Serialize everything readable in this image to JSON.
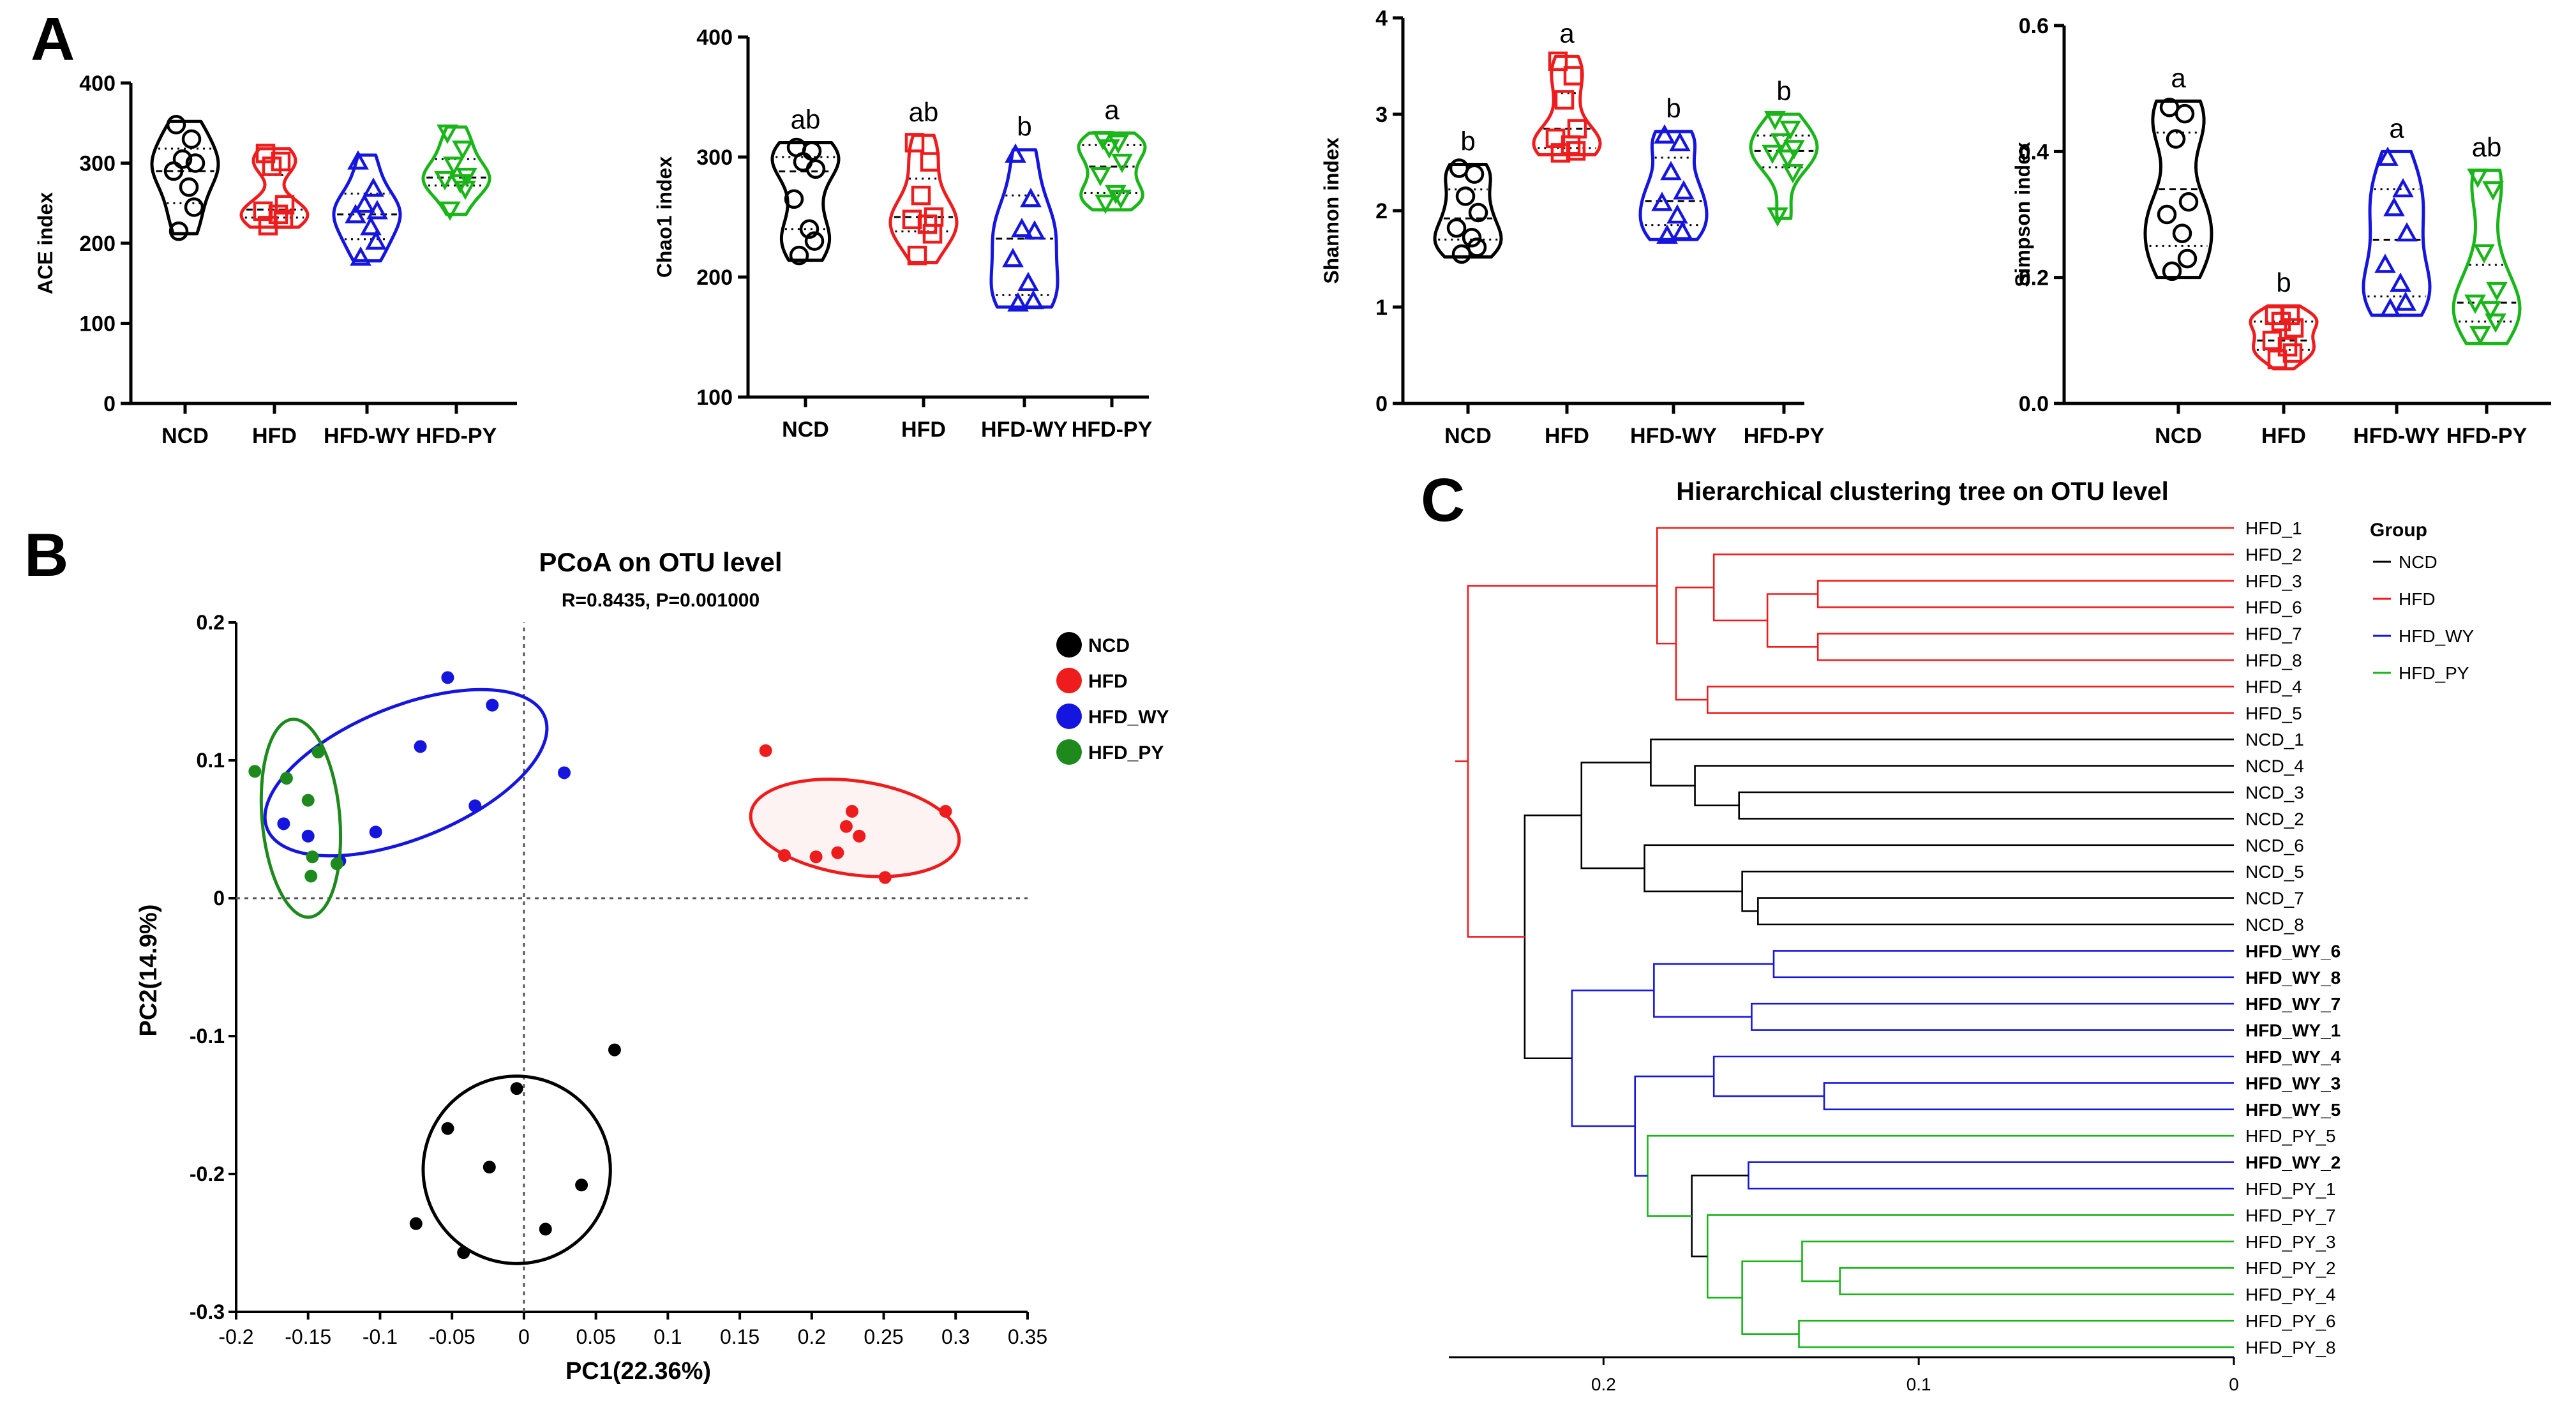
{
  "panel_labels": {
    "a": "A",
    "b": "B",
    "c": "C"
  },
  "colors": {
    "NCD": "#000000",
    "HFD": "#ee1c1c",
    "HFD-WY": "#1515e0",
    "HFD-PY": "#19b519",
    "HFD_PY_scatter": "#1e8a1e"
  },
  "chart_data": [
    {
      "id": "ace",
      "type": "violin",
      "ylabel": "ACE index",
      "ylim": [
        0,
        400
      ],
      "yticks": [
        0,
        100,
        200,
        300,
        400
      ],
      "categories": [
        "NCD",
        "HFD",
        "HFD-WY",
        "HFD-PY"
      ],
      "markers": [
        "circle",
        "square",
        "triangle-up",
        "triangle-down"
      ],
      "letters": [
        "",
        "",
        "",
        ""
      ],
      "groups": [
        {
          "name": "NCD",
          "points": [
            348,
            330,
            305,
            300,
            290,
            270,
            245,
            215
          ],
          "range": [
            212,
            352
          ],
          "median": 290,
          "q1": 250,
          "q3": 318
        },
        {
          "name": "HFD",
          "points": [
            312,
            302,
            296,
            248,
            240,
            236,
            230,
            222
          ],
          "range": [
            220,
            318
          ],
          "median": 242,
          "q1": 232,
          "q3": 285
        },
        {
          "name": "HFD-WY",
          "points": [
            302,
            268,
            248,
            240,
            235,
            220,
            202,
            182
          ],
          "range": [
            178,
            310
          ],
          "median": 236,
          "q1": 205,
          "q3": 262
        },
        {
          "name": "HFD-PY",
          "points": [
            338,
            318,
            298,
            284,
            280,
            276,
            268,
            242
          ],
          "range": [
            236,
            345
          ],
          "median": 282,
          "q1": 272,
          "q3": 305
        }
      ]
    },
    {
      "id": "chao1",
      "type": "violin",
      "ylabel": "Chao1 index",
      "ylim": [
        100,
        400
      ],
      "yticks": [
        100,
        200,
        300,
        400
      ],
      "categories": [
        "NCD",
        "HFD",
        "HFD-WY",
        "HFD-PY"
      ],
      "markers": [
        "circle",
        "square",
        "triangle-up",
        "triangle-down"
      ],
      "letters": [
        "ab",
        "ab",
        "b",
        "a"
      ],
      "groups": [
        {
          "name": "NCD",
          "points": [
            308,
            305,
            296,
            290,
            265,
            240,
            230,
            218
          ],
          "range": [
            214,
            312
          ],
          "median": 288,
          "q1": 240,
          "q3": 300
        },
        {
          "name": "HFD",
          "points": [
            312,
            296,
            268,
            250,
            248,
            244,
            236,
            218
          ],
          "range": [
            212,
            318
          ],
          "median": 250,
          "q1": 238,
          "q3": 282
        },
        {
          "name": "HFD-WY",
          "points": [
            302,
            265,
            240,
            238,
            215,
            195,
            180,
            178
          ],
          "range": [
            175,
            306
          ],
          "median": 232,
          "q1": 185,
          "q3": 268
        },
        {
          "name": "HFD-PY",
          "points": [
            315,
            312,
            308,
            296,
            285,
            270,
            266,
            262
          ],
          "range": [
            256,
            320
          ],
          "median": 292,
          "q1": 270,
          "q3": 310
        }
      ]
    },
    {
      "id": "shannon",
      "type": "violin",
      "ylabel": "Shannon index",
      "ylim": [
        0,
        4
      ],
      "yticks": [
        0,
        1,
        2,
        3,
        4
      ],
      "categories": [
        "NCD",
        "HFD",
        "HFD-WY",
        "HFD-PY"
      ],
      "markers": [
        "circle",
        "square",
        "triangle-up",
        "triangle-down"
      ],
      "letters": [
        "b",
        "a",
        "b",
        "b"
      ],
      "groups": [
        {
          "name": "NCD",
          "points": [
            2.44,
            2.38,
            2.15,
            1.98,
            1.82,
            1.72,
            1.62,
            1.55
          ],
          "range": [
            1.52,
            2.48
          ],
          "median": 1.92,
          "q1": 1.7,
          "q3": 2.22
        },
        {
          "name": "HFD",
          "points": [
            3.55,
            3.4,
            3.15,
            2.85,
            2.75,
            2.68,
            2.62,
            2.6
          ],
          "range": [
            2.58,
            3.6
          ],
          "median": 2.85,
          "q1": 2.65,
          "q3": 3.22
        },
        {
          "name": "HFD-WY",
          "points": [
            2.78,
            2.7,
            2.4,
            2.2,
            2.08,
            1.95,
            1.78,
            1.74
          ],
          "range": [
            1.7,
            2.82
          ],
          "median": 2.1,
          "q1": 1.85,
          "q3": 2.55
        },
        {
          "name": "HFD-PY",
          "points": [
            2.95,
            2.85,
            2.72,
            2.65,
            2.6,
            2.55,
            2.4,
            1.95
          ],
          "range": [
            1.92,
            3.0
          ],
          "median": 2.62,
          "q1": 2.45,
          "q3": 2.78
        }
      ]
    },
    {
      "id": "simpson",
      "type": "violin",
      "ylabel": "Simpson index",
      "ylim": [
        0,
        0.6
      ],
      "yticks": [
        0.0,
        0.2,
        0.4,
        0.6
      ],
      "categories": [
        "NCD",
        "HFD",
        "HFD-WY",
        "HFD-PY"
      ],
      "markers": [
        "circle",
        "square",
        "triangle-up",
        "triangle-down"
      ],
      "letters": [
        "a",
        "b",
        "a",
        "ab"
      ],
      "groups": [
        {
          "name": "NCD",
          "points": [
            0.47,
            0.46,
            0.42,
            0.32,
            0.3,
            0.27,
            0.23,
            0.21
          ],
          "range": [
            0.2,
            0.48
          ],
          "median": 0.34,
          "q1": 0.25,
          "q3": 0.43
        },
        {
          "name": "HFD",
          "points": [
            0.14,
            0.14,
            0.13,
            0.12,
            0.1,
            0.09,
            0.08,
            0.07
          ],
          "range": [
            0.055,
            0.155
          ],
          "median": 0.1,
          "q1": 0.085,
          "q3": 0.13
        },
        {
          "name": "HFD-WY",
          "points": [
            0.39,
            0.34,
            0.31,
            0.27,
            0.22,
            0.19,
            0.16,
            0.15
          ],
          "range": [
            0.14,
            0.4
          ],
          "median": 0.26,
          "q1": 0.17,
          "q3": 0.34
        },
        {
          "name": "HFD-PY",
          "points": [
            0.36,
            0.34,
            0.24,
            0.18,
            0.16,
            0.15,
            0.13,
            0.11
          ],
          "range": [
            0.095,
            0.37
          ],
          "median": 0.16,
          "q1": 0.13,
          "q3": 0.22
        }
      ]
    },
    {
      "id": "pcoa",
      "type": "scatter",
      "title": "PCoA on OTU level",
      "subtitle": "R=0.8435, P=0.001000",
      "xlabel": "PC1(22.36%)",
      "ylabel": "PC2(14.9%)",
      "xlim": [
        -0.2,
        0.35
      ],
      "ylim": [
        -0.3,
        0.2
      ],
      "xticks": [
        -0.2,
        -0.15,
        -0.1,
        -0.05,
        0,
        0.05,
        0.1,
        0.15,
        0.2,
        0.25,
        0.3,
        0.35
      ],
      "xticklabels": [
        "-0.2",
        "-0.15",
        "-0.1",
        "-0.05",
        "0",
        "0.05",
        "0.1",
        "0.15",
        "0.2",
        "0.25",
        "0.3",
        "0.35"
      ],
      "yticks": [
        -0.3,
        -0.2,
        -0.1,
        0,
        0.1,
        0.2
      ],
      "yticklabels": [
        "-0.3",
        "-0.2",
        "-0.1",
        "0",
        "0.1",
        "0.2"
      ],
      "legend_position": "right",
      "series": [
        {
          "name": "NCD",
          "points": [
            [
              0.063,
              -0.11
            ],
            [
              -0.005,
              -0.138
            ],
            [
              -0.053,
              -0.167
            ],
            [
              -0.024,
              -0.195
            ],
            [
              0.04,
              -0.208
            ],
            [
              -0.075,
              -0.236
            ],
            [
              0.015,
              -0.24
            ],
            [
              -0.042,
              -0.257
            ]
          ],
          "ellipse": {
            "cx": -0.005,
            "cy": -0.197,
            "rx": 0.065,
            "ry": 0.068,
            "angle": 35
          }
        },
        {
          "name": "HFD",
          "points": [
            [
              0.168,
              0.107
            ],
            [
              0.293,
              0.063
            ],
            [
              0.228,
              0.063
            ],
            [
              0.224,
              0.052
            ],
            [
              0.233,
              0.045
            ],
            [
              0.181,
              0.031
            ],
            [
              0.203,
              0.03
            ],
            [
              0.218,
              0.033
            ],
            [
              0.251,
              0.015
            ]
          ],
          "ellipse": {
            "cx": 0.23,
            "cy": 0.051,
            "rx": 0.073,
            "ry": 0.034,
            "angle": -8
          }
        },
        {
          "name": "HFD_WY",
          "points": [
            [
              -0.053,
              0.16
            ],
            [
              -0.022,
              0.14
            ],
            [
              -0.072,
              0.11
            ],
            [
              0.028,
              0.091
            ],
            [
              -0.034,
              0.067
            ],
            [
              -0.103,
              0.048
            ],
            [
              -0.15,
              0.045
            ],
            [
              -0.167,
              0.054
            ],
            [
              -0.128,
              0.027
            ]
          ],
          "ellipse": {
            "cx": -0.082,
            "cy": 0.091,
            "rx": 0.104,
            "ry": 0.048,
            "angle": 22
          }
        },
        {
          "name": "HFD_PY",
          "points": [
            [
              -0.187,
              0.092
            ],
            [
              -0.143,
              0.106
            ],
            [
              -0.165,
              0.087
            ],
            [
              -0.15,
              0.071
            ],
            [
              -0.147,
              0.03
            ],
            [
              -0.148,
              0.016
            ],
            [
              -0.13,
              0.025
            ]
          ],
          "ellipse": {
            "cx": -0.155,
            "cy": 0.058,
            "rx": 0.027,
            "ry": 0.072,
            "angle": 5
          }
        }
      ]
    },
    {
      "id": "tree",
      "type": "dendrogram",
      "title": "Hierarchical clustering tree on OTU level",
      "xticks": [
        0.2,
        0.1,
        0
      ],
      "xticklabels": [
        "0.2",
        "0.1",
        "0"
      ],
      "legend_title": "Group",
      "legend": [
        {
          "name": "NCD",
          "color": "#000000"
        },
        {
          "name": "HFD",
          "color": "#ee1c1c"
        },
        {
          "name": "HFD_WY",
          "color": "#1515e0"
        },
        {
          "name": "HFD_PY",
          "color": "#19b519"
        }
      ],
      "leaves": [
        {
          "label": "HFD_1",
          "group": "HFD"
        },
        {
          "label": "HFD_2",
          "group": "HFD"
        },
        {
          "label": "HFD_3",
          "group": "HFD"
        },
        {
          "label": "HFD_6",
          "group": "HFD"
        },
        {
          "label": "HFD_7",
          "group": "HFD"
        },
        {
          "label": "HFD_8",
          "group": "HFD"
        },
        {
          "label": "HFD_4",
          "group": "HFD"
        },
        {
          "label": "HFD_5",
          "group": "HFD"
        },
        {
          "label": "NCD_1",
          "group": "NCD"
        },
        {
          "label": "NCD_4",
          "group": "NCD"
        },
        {
          "label": "NCD_3",
          "group": "NCD"
        },
        {
          "label": "NCD_2",
          "group": "NCD"
        },
        {
          "label": "NCD_6",
          "group": "NCD"
        },
        {
          "label": "NCD_5",
          "group": "NCD"
        },
        {
          "label": "NCD_7",
          "group": "NCD"
        },
        {
          "label": "NCD_8",
          "group": "NCD"
        },
        {
          "label": "HFD_WY_6",
          "group": "HFD_WY"
        },
        {
          "label": "HFD_WY_8",
          "group": "HFD_WY"
        },
        {
          "label": "HFD_WY_7",
          "group": "HFD_WY"
        },
        {
          "label": "HFD_WY_1",
          "group": "HFD_WY"
        },
        {
          "label": "HFD_WY_4",
          "group": "HFD_WY"
        },
        {
          "label": "HFD_WY_3",
          "group": "HFD_WY"
        },
        {
          "label": "HFD_WY_5",
          "group": "HFD_WY"
        },
        {
          "label": "HFD_PY_5",
          "group": "HFD_PY"
        },
        {
          "label": "HFD_WY_2",
          "group": "HFD_WY"
        },
        {
          "label": "HFD_PY_1",
          "group": "HFD_PY"
        },
        {
          "label": "HFD_PY_7",
          "group": "HFD_PY"
        },
        {
          "label": "HFD_PY_3",
          "group": "HFD_PY"
        },
        {
          "label": "HFD_PY_2",
          "group": "HFD_PY"
        },
        {
          "label": "HFD_PY_4",
          "group": "HFD_PY"
        },
        {
          "label": "HFD_PY_6",
          "group": "HFD_PY"
        },
        {
          "label": "HFD_PY_8",
          "group": "HFD_PY"
        }
      ],
      "merges": [
        {
          "id": "n1",
          "a": "HFD_3",
          "b": "HFD_6",
          "h": 0.132,
          "color": "#ee1c1c"
        },
        {
          "id": "n2",
          "a": "HFD_7",
          "b": "HFD_8",
          "h": 0.132,
          "color": "#ee1c1c"
        },
        {
          "id": "n3",
          "a": "n1",
          "b": "n2",
          "h": 0.148,
          "color": "#ee1c1c"
        },
        {
          "id": "n4",
          "a": "HFD_2",
          "b": "n3",
          "h": 0.165,
          "color": "#ee1c1c"
        },
        {
          "id": "n5",
          "a": "HFD_4",
          "b": "HFD_5",
          "h": 0.167,
          "color": "#ee1c1c"
        },
        {
          "id": "n6",
          "a": "n4",
          "b": "n5",
          "h": 0.177,
          "color": "#ee1c1c"
        },
        {
          "id": "n7",
          "a": "HFD_1",
          "b": "n6",
          "h": 0.183,
          "color": "#ee1c1c"
        },
        {
          "id": "n8",
          "a": "NCD_3",
          "b": "NCD_2",
          "h": 0.157,
          "color": "#000000"
        },
        {
          "id": "n9",
          "a": "NCD_4",
          "b": "n8",
          "h": 0.171,
          "color": "#000000"
        },
        {
          "id": "n10",
          "a": "NCD_1",
          "b": "n9",
          "h": 0.185,
          "color": "#000000"
        },
        {
          "id": "n11",
          "a": "NCD_7",
          "b": "NCD_8",
          "h": 0.151,
          "color": "#000000"
        },
        {
          "id": "n12",
          "a": "NCD_5",
          "b": "n11",
          "h": 0.156,
          "color": "#000000"
        },
        {
          "id": "n13",
          "a": "NCD_6",
          "b": "n12",
          "h": 0.187,
          "color": "#000000"
        },
        {
          "id": "n14",
          "a": "n10",
          "b": "n13",
          "h": 0.207,
          "color": "#000000"
        },
        {
          "id": "n15",
          "a": "HFD_WY_6",
          "b": "HFD_WY_8",
          "h": 0.146,
          "color": "#1515e0"
        },
        {
          "id": "n16",
          "a": "HFD_WY_7",
          "b": "HFD_WY_1",
          "h": 0.153,
          "color": "#1515e0"
        },
        {
          "id": "n17",
          "a": "n15",
          "b": "n16",
          "h": 0.184,
          "color": "#1515e0"
        },
        {
          "id": "n18",
          "a": "HFD_WY_3",
          "b": "HFD_WY_5",
          "h": 0.13,
          "color": "#1515e0"
        },
        {
          "id": "n19",
          "a": "HFD_WY_4",
          "b": "n18",
          "h": 0.165,
          "color": "#1515e0"
        },
        {
          "id": "n20",
          "a": "HFD_WY_2",
          "b": "HFD_PY_1",
          "h": 0.154,
          "color": "#1515e0"
        },
        {
          "id": "n21",
          "a": "HFD_PY_2",
          "b": "HFD_PY_4",
          "h": 0.125,
          "color": "#19b519"
        },
        {
          "id": "n22",
          "a": "HFD_PY_3",
          "b": "n21",
          "h": 0.137,
          "color": "#19b519"
        },
        {
          "id": "n23",
          "a": "HFD_PY_6",
          "b": "HFD_PY_8",
          "h": 0.138,
          "color": "#19b519"
        },
        {
          "id": "n24",
          "a": "n22",
          "b": "n23",
          "h": 0.156,
          "color": "#19b519"
        },
        {
          "id": "n25",
          "a": "HFD_PY_7",
          "b": "n24",
          "h": 0.167,
          "color": "#19b519"
        },
        {
          "id": "n26",
          "a": "n20",
          "b": "n25",
          "h": 0.172,
          "color": "#000000"
        },
        {
          "id": "n27",
          "a": "HFD_PY_5",
          "b": "n26",
          "h": 0.186,
          "color": "#19b519"
        },
        {
          "id": "n28",
          "a": "n19",
          "b": "n27",
          "h": 0.19,
          "color": "#1515e0"
        },
        {
          "id": "n29",
          "a": "n17",
          "b": "n28",
          "h": 0.21,
          "color": "#1515e0"
        },
        {
          "id": "n30",
          "a": "n14",
          "b": "n29",
          "h": 0.225,
          "color": "#000000"
        },
        {
          "id": "n31",
          "a": "n7",
          "b": "n30",
          "h": 0.243,
          "color": "#ee1c1c"
        }
      ]
    }
  ]
}
